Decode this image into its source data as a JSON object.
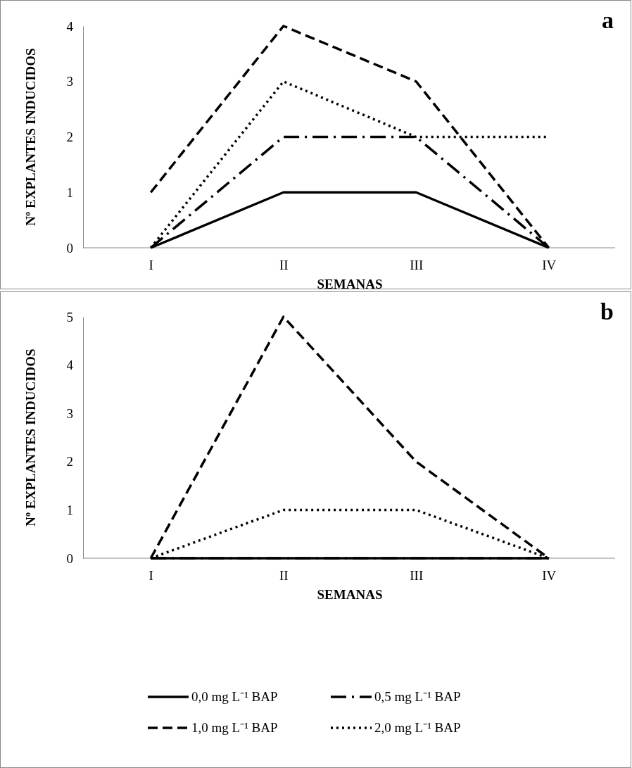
{
  "chart_data": [
    {
      "type": "line",
      "annotations": [
        "a"
      ],
      "xlabel": "SEMANAS",
      "ylabel": "Nº EXPLANTES INDUCIDOS",
      "categories": [
        "I",
        "II",
        "III",
        "IV"
      ],
      "ylim": [
        0,
        4
      ],
      "yticks": [
        0,
        1,
        2,
        3,
        4
      ],
      "grid": false,
      "legend": false,
      "marker": "none",
      "series": [
        {
          "color": "#000000",
          "line_style": "solid",
          "values": [
            0,
            1,
            1,
            0
          ]
        },
        {
          "color": "#000000",
          "line_style": "dashdot",
          "values": [
            0,
            2,
            2,
            0
          ]
        },
        {
          "color": "#000000",
          "line_style": "dashed",
          "values": [
            1,
            4,
            3,
            0
          ]
        },
        {
          "color": "#000000",
          "line_style": "dotted",
          "values": [
            0,
            3,
            2,
            2
          ]
        }
      ]
    },
    {
      "type": "line",
      "annotations": [
        "b"
      ],
      "xlabel": "SEMANAS",
      "ylabel": "Nº EXPLANTES INDUCIDOS",
      "categories": [
        "I",
        "II",
        "III",
        "IV"
      ],
      "ylim": [
        0,
        5
      ],
      "yticks": [
        0,
        1,
        2,
        3,
        4,
        5
      ],
      "grid": false,
      "legend": "bottom",
      "marker": "none",
      "series": [
        {
          "name": "0,0 mg L⁻¹ BAP",
          "color": "#000000",
          "line_style": "solid",
          "values": [
            0,
            0,
            0,
            0
          ]
        },
        {
          "name": "0,5 mg L⁻¹ BAP",
          "color": "#000000",
          "line_style": "dashdot",
          "values": [
            0,
            0,
            0,
            0
          ]
        },
        {
          "name": "1,0 mg L⁻¹ BAP",
          "color": "#000000",
          "line_style": "dashed",
          "values": [
            0,
            5,
            2,
            0
          ]
        },
        {
          "name": "2,0 mg L⁻¹ BAP",
          "color": "#000000",
          "line_style": "dotted",
          "values": [
            0,
            1,
            1,
            0
          ]
        }
      ]
    }
  ]
}
